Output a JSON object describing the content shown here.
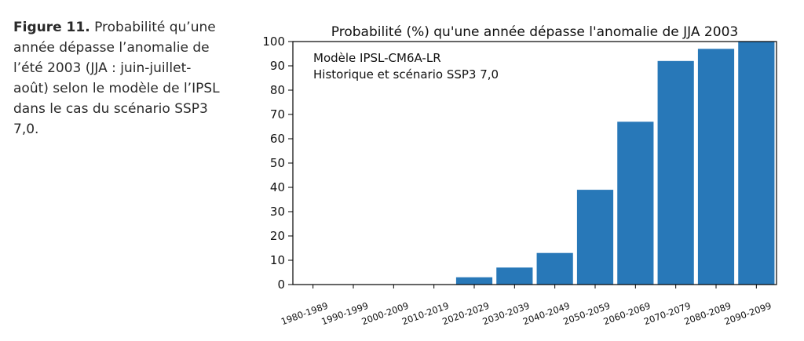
{
  "caption": {
    "label": "Figure 11.",
    "text": "Probabilité qu’une année dépasse l’anomalie de l’été 2003 (JJA : juin-juillet-août) selon le modèle de l’IPSL dans le cas du scénario SSP3 7,0."
  },
  "chart_data": {
    "type": "bar",
    "title": "Probabilité (%) qu'une année dépasse l'anomalie de JJA 2003",
    "annotations": [
      "Modèle IPSL-CM6A-LR",
      "Historique et scénario SSP3 7,0"
    ],
    "xlabel": "",
    "ylabel": "",
    "categories": [
      "1980-1989",
      "1990-1999",
      "2000-2009",
      "2010-2019",
      "2020-2029",
      "2030-2039",
      "2040-2049",
      "2050-2059",
      "2060-2069",
      "2070-2079",
      "2080-2089",
      "2090-2099"
    ],
    "values": [
      0,
      0,
      0,
      0,
      3,
      7,
      13,
      39,
      67,
      92,
      97,
      100
    ],
    "ylim": [
      0,
      100
    ],
    "yticks": [
      0,
      10,
      20,
      30,
      40,
      50,
      60,
      70,
      80,
      90,
      100
    ],
    "grid": false,
    "bar_color": "#2878b8"
  }
}
